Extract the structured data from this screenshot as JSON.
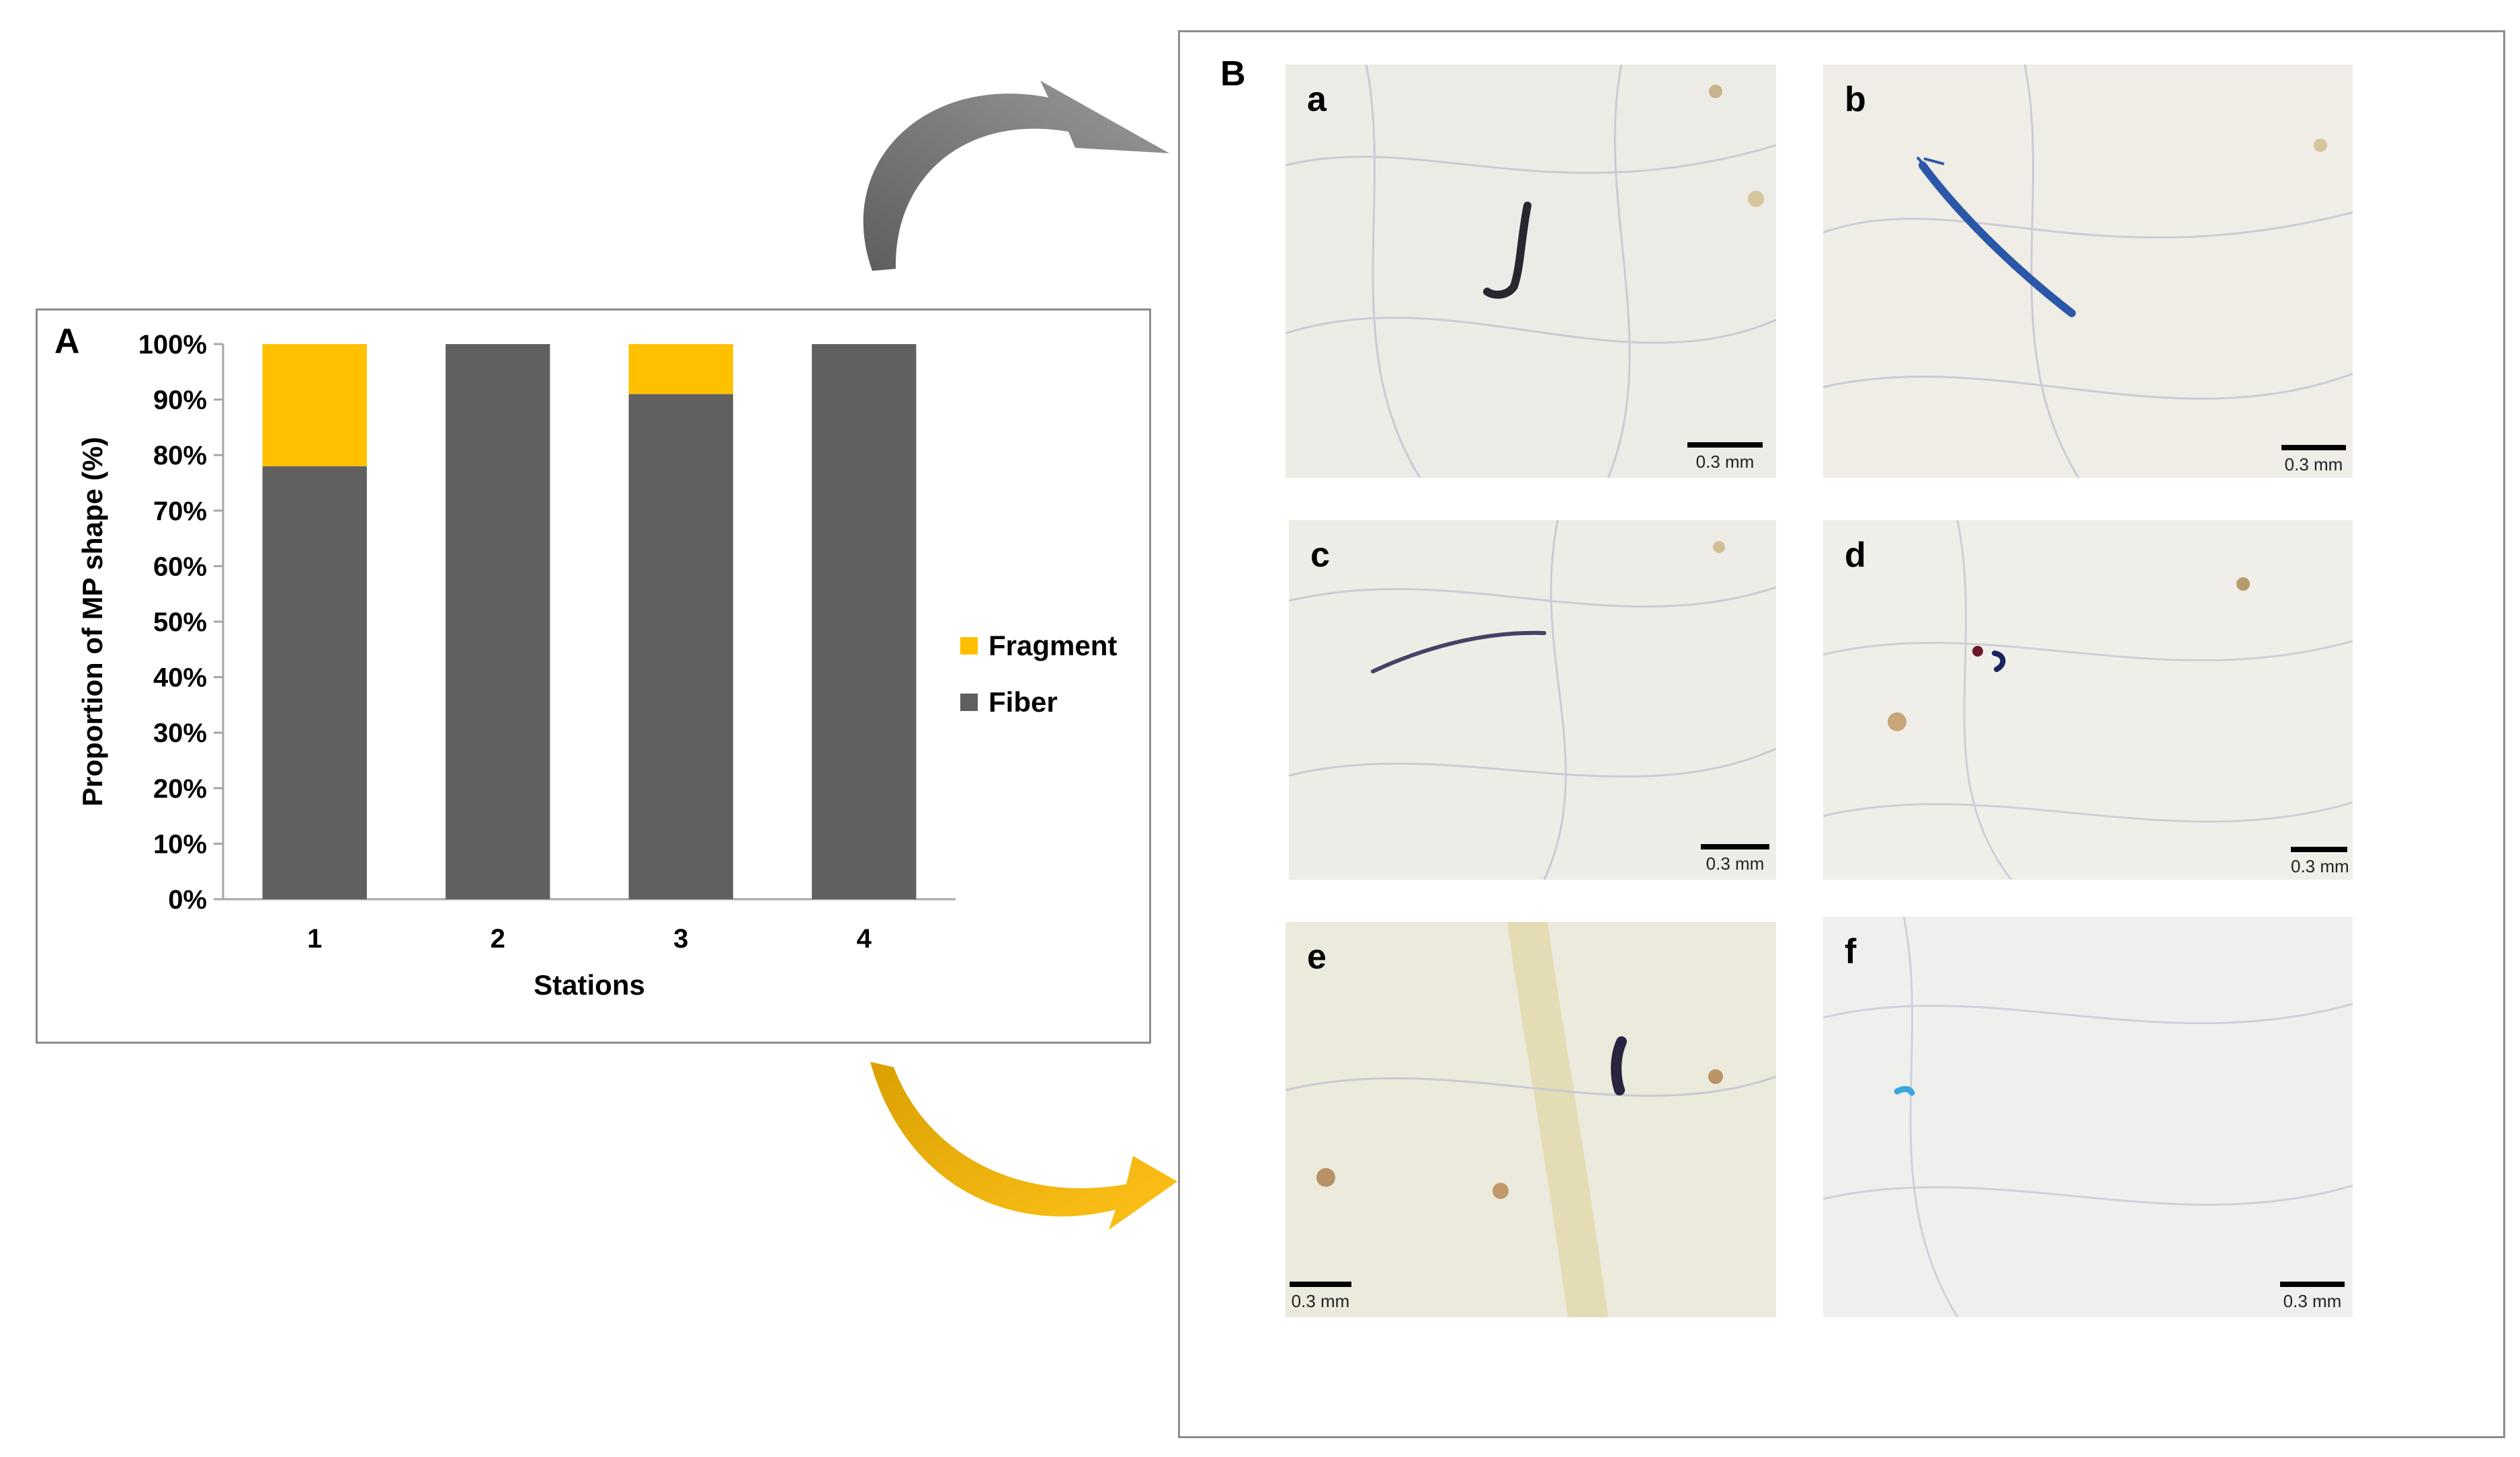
{
  "panels": {
    "a_label": "A",
    "b_label": "B"
  },
  "chart_data": {
    "type": "bar",
    "stacked": true,
    "categories": [
      "1",
      "2",
      "3",
      "4"
    ],
    "series": [
      {
        "name": "Fiber",
        "color": "#606060",
        "values": [
          78,
          100,
          91,
          100
        ]
      },
      {
        "name": "Fragment",
        "color": "#FFC000",
        "values": [
          22,
          0,
          9,
          0
        ]
      }
    ],
    "yticks": [
      "0%",
      "10%",
      "20%",
      "30%",
      "40%",
      "50%",
      "60%",
      "70%",
      "80%",
      "90%",
      "100%"
    ],
    "ylim": [
      0,
      100
    ],
    "xlabel": "Stations",
    "ylabel": "Proportion of MP shape (%)",
    "legend_position": "right",
    "grid": false
  },
  "legend": {
    "fragment": "Fragment",
    "fiber": "Fiber"
  },
  "micrographs": [
    {
      "label": "a",
      "scale": "0.3 mm"
    },
    {
      "label": "b",
      "scale": "0.3 mm"
    },
    {
      "label": "c",
      "scale": "0.3 mm"
    },
    {
      "label": "d",
      "scale": "0.3 mm"
    },
    {
      "label": "e",
      "scale": "0.3 mm"
    },
    {
      "label": "f",
      "scale": "0.3 mm"
    }
  ],
  "arrows": {
    "top_color": "#7a7a7a",
    "bottom_color": "#f2b400"
  }
}
